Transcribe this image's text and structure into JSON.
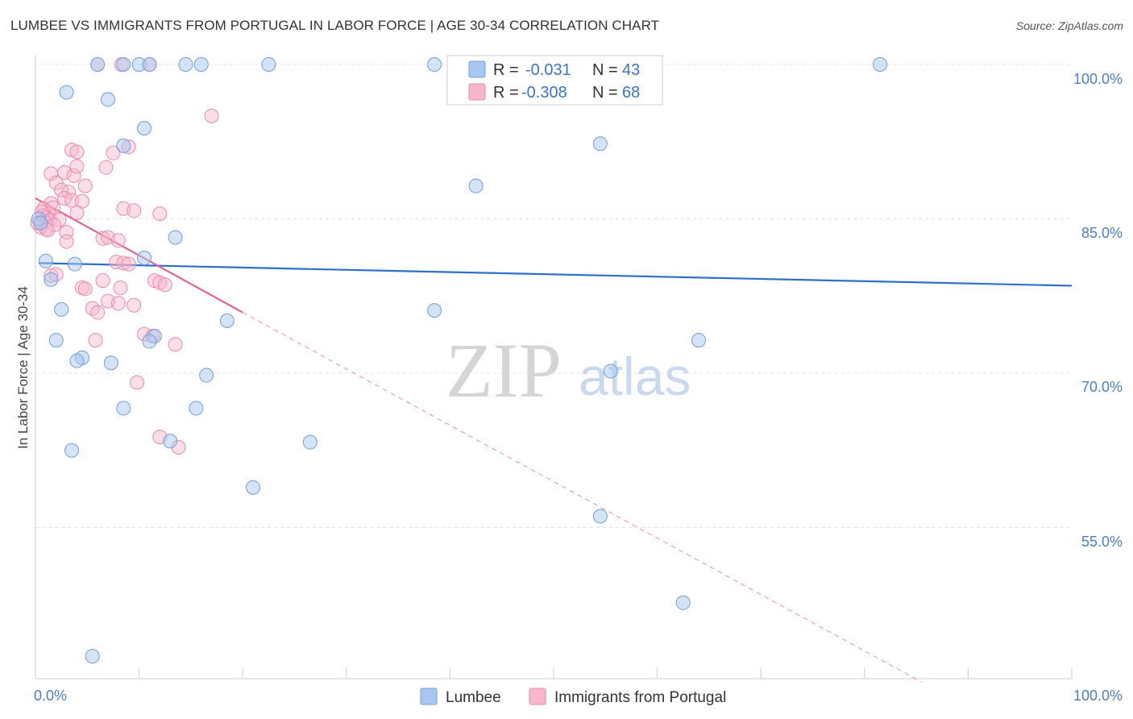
{
  "title": "LUMBEE VS IMMIGRANTS FROM PORTUGAL IN LABOR FORCE | AGE 30-34 CORRELATION CHART",
  "source": "Source: ZipAtlas.com",
  "watermark": {
    "zip": "ZIP",
    "atlas": "atlas"
  },
  "legend": {
    "lumbee": {
      "r_label": "R = ",
      "r_value": "-0.031",
      "n_label": "N = ",
      "n_value": "43"
    },
    "portugal": {
      "r_label": "R = ",
      "r_value": "-0.308",
      "n_label": "N = ",
      "n_value": "68"
    }
  },
  "colors": {
    "lumbee_fill": "#a9c7ee",
    "lumbee_stroke": "#6f9fde",
    "lumbee_line": "#2f6fca",
    "portugal_fill": "#f6b6cb",
    "portugal_stroke": "#ec8bab",
    "portugal_line": "#e0638f",
    "grid": "#e3e3e3",
    "tick_text": "#4a7fc1"
  },
  "chart_data": {
    "type": "scatter",
    "title": "LUMBEE VS IMMIGRANTS FROM PORTUGAL IN LABOR FORCE | AGE 30-34 CORRELATION CHART",
    "xlabel": "",
    "ylabel": "In Labor Force | Age 30-34",
    "xlim": [
      0,
      100
    ],
    "ylim": [
      40,
      101.5
    ],
    "x_tick_labels": [
      "0.0%",
      "100.0%"
    ],
    "y_ticks": [
      55,
      70,
      85,
      100
    ],
    "y_tick_labels": [
      "55.0%",
      "70.0%",
      "85.0%",
      "100.0%"
    ],
    "grid": true,
    "legend_position": "top-center",
    "series": [
      {
        "name": "Lumbee",
        "r": -0.031,
        "n": 43,
        "points": [
          [
            6.0,
            100
          ],
          [
            8.5,
            100
          ],
          [
            10.0,
            100
          ],
          [
            11.0,
            100
          ],
          [
            14.5,
            100
          ],
          [
            16.0,
            100
          ],
          [
            22.5,
            100
          ],
          [
            38.5,
            100
          ],
          [
            81.5,
            100
          ],
          [
            3.0,
            97.3
          ],
          [
            7.0,
            96.6
          ],
          [
            10.5,
            93.8
          ],
          [
            8.5,
            92.1
          ],
          [
            54.5,
            92.3
          ],
          [
            42.5,
            88.2
          ],
          [
            13.5,
            83.2
          ],
          [
            1.0,
            80.9
          ],
          [
            3.8,
            80.6
          ],
          [
            10.5,
            81.2
          ],
          [
            1.5,
            79.1
          ],
          [
            2.5,
            76.2
          ],
          [
            38.5,
            76.1
          ],
          [
            18.5,
            75.1
          ],
          [
            2.0,
            73.2
          ],
          [
            11.5,
            73.6
          ],
          [
            11.0,
            73.1
          ],
          [
            64.0,
            73.2
          ],
          [
            4.5,
            71.5
          ],
          [
            4.0,
            71.2
          ],
          [
            7.3,
            71.0
          ],
          [
            55.5,
            70.2
          ],
          [
            16.5,
            69.8
          ],
          [
            8.5,
            66.6
          ],
          [
            15.5,
            66.6
          ],
          [
            13.0,
            63.4
          ],
          [
            26.5,
            63.3
          ],
          [
            3.5,
            62.5
          ],
          [
            21.0,
            58.9
          ],
          [
            54.5,
            56.1
          ],
          [
            62.5,
            47.7
          ],
          [
            5.5,
            42.5
          ],
          [
            0.3,
            85.0
          ],
          [
            0.5,
            84.6
          ]
        ],
        "trend": {
          "x0": 0.3,
          "y0": 80.7,
          "x1": 100,
          "y1": 78.5
        }
      },
      {
        "name": "Immigrants from Portugal",
        "r": -0.308,
        "n": 68,
        "points": [
          [
            6.0,
            100
          ],
          [
            8.3,
            100
          ],
          [
            11.0,
            100
          ],
          [
            17.0,
            95.0
          ],
          [
            3.5,
            91.7
          ],
          [
            4.0,
            91.5
          ],
          [
            7.5,
            91.4
          ],
          [
            9.0,
            92.0
          ],
          [
            1.5,
            89.4
          ],
          [
            2.8,
            89.5
          ],
          [
            3.7,
            89.2
          ],
          [
            4.0,
            90.1
          ],
          [
            6.8,
            90.0
          ],
          [
            2.0,
            88.5
          ],
          [
            2.5,
            87.8
          ],
          [
            3.2,
            87.6
          ],
          [
            4.8,
            88.2
          ],
          [
            2.8,
            87.0
          ],
          [
            3.5,
            86.8
          ],
          [
            4.5,
            86.7
          ],
          [
            1.5,
            86.5
          ],
          [
            0.8,
            86.0
          ],
          [
            1.7,
            86.1
          ],
          [
            1.3,
            85.5
          ],
          [
            8.5,
            86.0
          ],
          [
            9.5,
            85.8
          ],
          [
            12.0,
            85.5
          ],
          [
            4.0,
            85.6
          ],
          [
            0.7,
            85.3
          ],
          [
            1.1,
            85.1
          ],
          [
            1.4,
            84.9
          ],
          [
            0.9,
            84.7
          ],
          [
            2.3,
            84.9
          ],
          [
            1.8,
            84.4
          ],
          [
            1.0,
            84.0
          ],
          [
            3.0,
            83.7
          ],
          [
            6.5,
            83.1
          ],
          [
            7.0,
            83.2
          ],
          [
            8.0,
            82.9
          ],
          [
            3.0,
            82.8
          ],
          [
            7.8,
            80.8
          ],
          [
            8.5,
            80.7
          ],
          [
            9.0,
            80.6
          ],
          [
            11.5,
            79.0
          ],
          [
            12.0,
            78.8
          ],
          [
            12.5,
            78.6
          ],
          [
            8.2,
            78.3
          ],
          [
            6.5,
            79.0
          ],
          [
            4.5,
            78.3
          ],
          [
            4.8,
            78.2
          ],
          [
            1.5,
            79.5
          ],
          [
            2.0,
            79.6
          ],
          [
            7.0,
            77.0
          ],
          [
            8.0,
            76.8
          ],
          [
            9.5,
            76.6
          ],
          [
            5.5,
            76.3
          ],
          [
            6.0,
            75.9
          ],
          [
            10.5,
            73.8
          ],
          [
            11.3,
            73.6
          ],
          [
            13.5,
            72.8
          ],
          [
            5.8,
            73.2
          ],
          [
            9.8,
            69.1
          ],
          [
            12.0,
            63.8
          ],
          [
            13.8,
            62.8
          ],
          [
            0.5,
            84.2
          ],
          [
            0.2,
            84.6
          ],
          [
            0.6,
            85.7
          ],
          [
            1.2,
            83.9
          ]
        ],
        "trend": {
          "x0": 0,
          "y0": 87.0,
          "x1": 20,
          "y1": 75.9
        },
        "trend_extended": {
          "x0": 20,
          "y0": 75.9,
          "x1": 85.5,
          "y1": 40.0
        }
      }
    ]
  },
  "axis": {
    "ylabel": "In Labor Force | Age 30-34",
    "x_left": "0.0%",
    "x_right": "100.0%",
    "y_ticks": [
      "100.0%",
      "85.0%",
      "70.0%",
      "55.0%"
    ]
  },
  "bottom_legend": {
    "lumbee": "Lumbee",
    "portugal": "Immigrants from Portugal"
  }
}
